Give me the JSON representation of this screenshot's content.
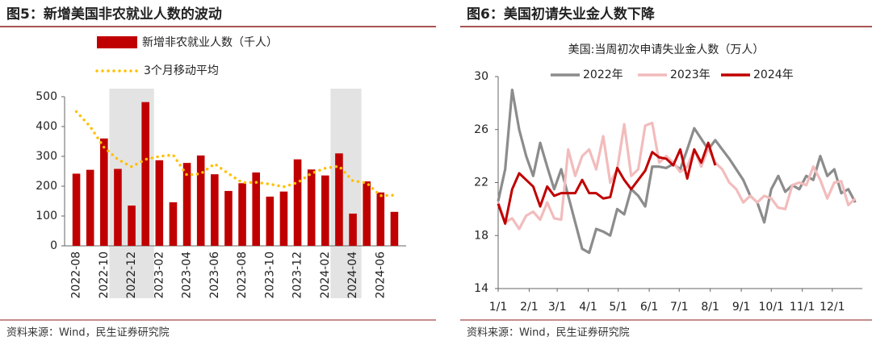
{
  "chart_data": [
    {
      "type": "bar",
      "title": "图5：新增美国非农就业人数的波动",
      "source": "资料来源：Wind，民生证券研究院",
      "categories": [
        "2022-08",
        null,
        "2022-10",
        null,
        "2022-12",
        null,
        "2023-02",
        null,
        "2023-04",
        null,
        "2023-06",
        null,
        "2023-08",
        null,
        "2023-10",
        null,
        "2023-12",
        null,
        "2024-02",
        null,
        "2024-04",
        null,
        "2024-06",
        null
      ],
      "series": [
        {
          "name": "新增非农就业人数（千人）",
          "color": "#c00000",
          "type": "bar",
          "values": [
            242,
            255,
            360,
            258,
            135,
            482,
            287,
            146,
            278,
            303,
            240,
            184,
            210,
            246,
            165,
            182,
            290,
            256,
            236,
            310,
            108,
            216,
            179,
            114
          ]
        },
        {
          "name": "3个月移动平均",
          "color": "#ffc000",
          "type": "line",
          "style": "dotted",
          "values": [
            450,
            400,
            330,
            290,
            265,
            290,
            300,
            305,
            237,
            242,
            275,
            242,
            212,
            213,
            207,
            198,
            212,
            243,
            260,
            267,
            218,
            211,
            168,
            170
          ]
        }
      ],
      "ylim": [
        0,
        500
      ],
      "yticks": [
        0,
        100,
        200,
        300,
        400,
        500
      ]
    },
    {
      "type": "line",
      "title": "图6：美国初请失业金人数下降",
      "subtitle": "美国:当周初次申请失业金人数（万人）",
      "source": "资料来源：Wind，民生证券研究院",
      "x": [
        1,
        8,
        15,
        22,
        29,
        36,
        43,
        50,
        57,
        64,
        71,
        78,
        85,
        92,
        99,
        106,
        113,
        120,
        127,
        134,
        141,
        148,
        155,
        162,
        169,
        176,
        183,
        190,
        197,
        204,
        211,
        218,
        225,
        232,
        239,
        246,
        253,
        260,
        267,
        274,
        281,
        288,
        295,
        302,
        309,
        316,
        323,
        330,
        337,
        344,
        351,
        358
      ],
      "series": [
        {
          "name": "2022年",
          "color": "#8c8c8c",
          "values": [
            20.6,
            23.0,
            29.0,
            26.0,
            24.0,
            22.5,
            25.0,
            23.2,
            21.5,
            23.0,
            21.0,
            19.0,
            17.0,
            16.7,
            18.5,
            18.3,
            18.0,
            20.0,
            19.6,
            21.5,
            21.0,
            20.2,
            23.2,
            23.2,
            23.1,
            23.4,
            23.0,
            24.5,
            26.1,
            25.3,
            24.5,
            25.2,
            24.5,
            23.8,
            23.0,
            22.2,
            21.0,
            20.5,
            19.0,
            21.5,
            22.5,
            21.3,
            21.8,
            21.5,
            22.5,
            22.2,
            24.0,
            22.5,
            23.0,
            21.2,
            21.5,
            20.5
          ]
        },
        {
          "name": "2023年",
          "color": "#f2bcbc",
          "values": [
            20.5,
            19.0,
            19.3,
            18.5,
            19.5,
            19.8,
            19.2,
            20.5,
            19.3,
            19.2,
            24.5,
            22.5,
            24.0,
            24.5,
            23.0,
            25.5,
            22.0,
            23.0,
            26.4,
            22.5,
            23.0,
            26.3,
            26.5,
            23.5,
            24.0,
            23.5,
            22.8,
            23.2,
            24.5,
            23.2,
            24.6,
            23.5,
            23.0,
            22.0,
            21.5,
            20.5,
            21.0,
            20.5,
            21.0,
            20.8,
            20.1,
            20.0,
            21.8,
            22.0,
            21.8,
            23.2,
            22.2,
            20.8,
            22.0,
            22.1,
            20.3,
            20.8
          ]
        },
        {
          "name": "2024年",
          "color": "#c00000",
          "values": [
            20.4,
            18.9,
            21.5,
            22.7,
            22.2,
            21.7,
            20.2,
            21.7,
            21.0,
            21.2,
            21.2,
            21.2,
            22.2,
            21.2,
            21.2,
            20.8,
            20.9,
            23.1,
            22.2,
            21.5,
            22.2,
            22.9,
            24.3,
            23.9,
            23.8,
            23.3,
            24.5,
            22.3,
            24.5,
            23.5,
            25.0,
            23.3,
            null,
            null,
            null,
            null,
            null,
            null,
            null,
            null,
            null,
            null,
            null,
            null,
            null,
            null,
            null,
            null,
            null,
            null,
            null,
            null
          ]
        }
      ],
      "xlim": [
        1,
        365
      ],
      "xticks": [
        {
          "value": 1,
          "label": "1/1"
        },
        {
          "value": 32,
          "label": "2/1"
        },
        {
          "value": 60,
          "label": "3/1"
        },
        {
          "value": 91,
          "label": "4/1"
        },
        {
          "value": 121,
          "label": "5/1"
        },
        {
          "value": 152,
          "label": "6/1"
        },
        {
          "value": 182,
          "label": "7/1"
        },
        {
          "value": 213,
          "label": "8/1"
        },
        {
          "value": 244,
          "label": "9/1"
        },
        {
          "value": 274,
          "label": "10/1"
        },
        {
          "value": 305,
          "label": "11/1"
        },
        {
          "value": 335,
          "label": "12/1"
        }
      ],
      "ylim": [
        14,
        30
      ],
      "yticks": [
        14,
        18,
        22,
        26,
        30
      ]
    }
  ]
}
